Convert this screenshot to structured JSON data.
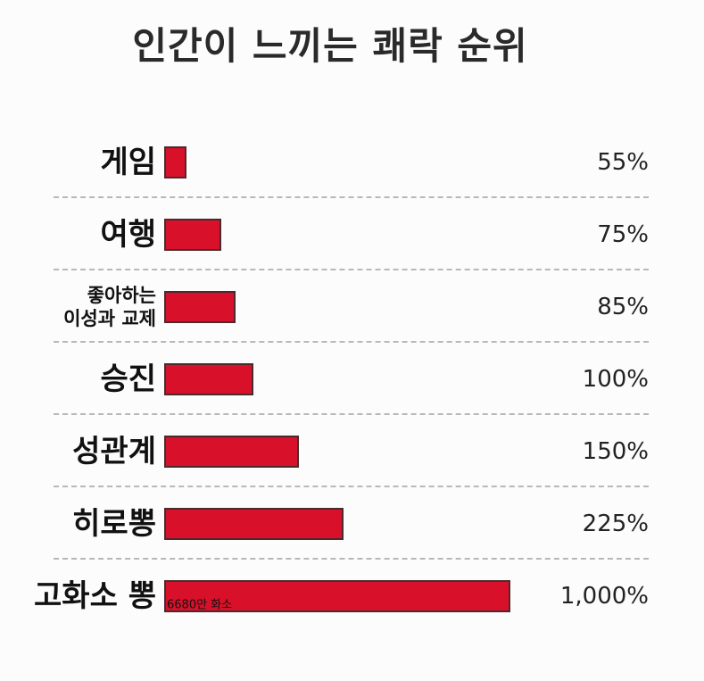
{
  "chart_data": {
    "type": "bar",
    "orientation": "horizontal",
    "title": "인간이 느끼는 쾌락 순위",
    "categories": [
      "게임",
      "여행",
      "좋아하는\n이성과 교제",
      "승진",
      "성관계",
      "히로뽕",
      "고화소 뽕"
    ],
    "values": [
      55,
      75,
      85,
      100,
      150,
      225,
      1000
    ],
    "value_labels": [
      "55%",
      "75%",
      "85%",
      "100%",
      "150%",
      "225%",
      "1,000%"
    ],
    "annotations": [
      {
        "text": "6680만 화소",
        "category": 6
      }
    ],
    "color": "#d8102a",
    "log_scale": true,
    "xlim": [
      45,
      1000
    ]
  }
}
